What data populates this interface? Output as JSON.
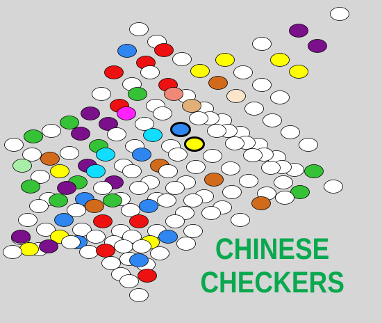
{
  "title": {
    "line1": "CHINESE",
    "line2": "CHECKERS"
  },
  "colors": {
    "W": "#ffffff",
    "R": "#ee1111",
    "B": "#2f86f0",
    "G": "#36c236",
    "LG": "#a8eea8",
    "P": "#7a108a",
    "M": "#ff22ff",
    "C": "#11ddff",
    "O": "#d26a1c",
    "S": "#f08878",
    "T": "#e0b078",
    "Q": "#fbe6cc",
    "Y": "#ffff00",
    "title": "#0aa84f",
    "background": "#d6d6d6"
  },
  "board": {
    "description_note": "rows of holes from top to bottom, values are color keys",
    "rows": [
      [
        "W"
      ],
      [
        "W",
        "W"
      ],
      [
        "W",
        "W",
        "W"
      ],
      [
        "B",
        "W",
        "W",
        "W"
      ],
      [
        "W",
        "W",
        "W",
        "W",
        "W",
        "W",
        "W",
        "W",
        "W",
        "W",
        "W",
        "W",
        "W"
      ],
      [
        "R",
        "W",
        "W",
        "W",
        "W",
        "W",
        "W",
        "W",
        "W",
        "W",
        "W",
        "W"
      ],
      [
        "B",
        "W",
        "W",
        "W",
        "W",
        "W",
        "W",
        "W",
        "W",
        "W",
        "W"
      ],
      [
        "W",
        "W",
        "W",
        "W",
        "W",
        "W",
        "W",
        "W",
        "W",
        "W"
      ],
      [
        "W",
        "W",
        "W",
        "W",
        "W",
        "W",
        "W",
        "W",
        "W"
      ],
      [
        "W",
        "W",
        "W",
        "W",
        "W",
        "W",
        "W",
        "W",
        "W",
        "W"
      ],
      [
        "W",
        "W",
        "W",
        "W",
        "W",
        "W",
        "W",
        "W",
        "W",
        "W",
        "W"
      ],
      [
        "W",
        "W",
        "W",
        "W",
        "W",
        "W",
        "W",
        "W",
        "W",
        "W",
        "W",
        "W"
      ],
      [
        "W",
        "W",
        "W",
        "W",
        "W",
        "W",
        "W",
        "W",
        "W",
        "W",
        "W",
        "W",
        "W"
      ],
      [
        "W",
        "W",
        "W",
        "W"
      ],
      [
        "W",
        "W",
        "W"
      ],
      [
        "W",
        "W"
      ],
      [
        "W"
      ]
    ]
  },
  "selected": [
    {
      "row": 7,
      "col": 4
    },
    {
      "row": 8,
      "col": 2
    }
  ]
}
